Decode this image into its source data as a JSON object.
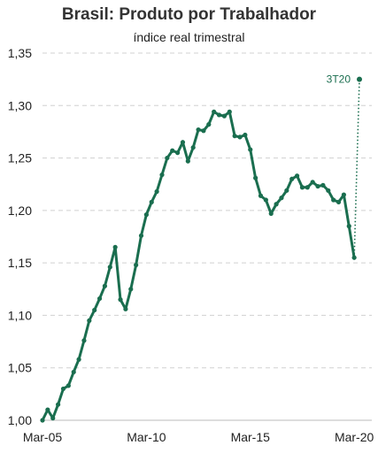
{
  "chart_data": {
    "type": "line",
    "title": "Brasil: Produto por Trabalhador",
    "subtitle": "índice real trimestral",
    "xlabel": "",
    "ylabel": "",
    "ylim": [
      1.0,
      1.35
    ],
    "y_ticks": [
      "1,00",
      "1,05",
      "1,10",
      "1,15",
      "1,20",
      "1,25",
      "1,30",
      "1,35"
    ],
    "y_tick_values": [
      1.0,
      1.05,
      1.1,
      1.15,
      1.2,
      1.25,
      1.3,
      1.35
    ],
    "x_ticks": [
      "Mar-05",
      "Mar-10",
      "Mar-15",
      "Mar-20"
    ],
    "x_tick_indices": [
      0,
      20,
      40,
      60
    ],
    "grid": {
      "horizontal": true,
      "style": "dashed"
    },
    "colors": {
      "line": "#1a6e4f",
      "grid": "#d0d0d0"
    },
    "series": [
      {
        "values": [
          1.0,
          1.01,
          1.002,
          1.015,
          1.03,
          1.033,
          1.046,
          1.058,
          1.076,
          1.095,
          1.105,
          1.116,
          1.128,
          1.146,
          1.165,
          1.115,
          1.106,
          1.125,
          1.148,
          1.176,
          1.196,
          1.208,
          1.218,
          1.234,
          1.25,
          1.257,
          1.255,
          1.265,
          1.247,
          1.26,
          1.277,
          1.276,
          1.282,
          1.294,
          1.291,
          1.29,
          1.294,
          1.271,
          1.27,
          1.272,
          1.258,
          1.231,
          1.214,
          1.21,
          1.197,
          1.206,
          1.212,
          1.219,
          1.23,
          1.233,
          1.222,
          1.222,
          1.227,
          1.223,
          1.224,
          1.219,
          1.21,
          1.208,
          1.215,
          1.185,
          1.155
        ]
      }
    ],
    "projection": {
      "label": "3T20",
      "from": {
        "x_index": 60,
        "y": 1.155
      },
      "to": {
        "x_index": 61,
        "y": 1.325
      }
    }
  }
}
